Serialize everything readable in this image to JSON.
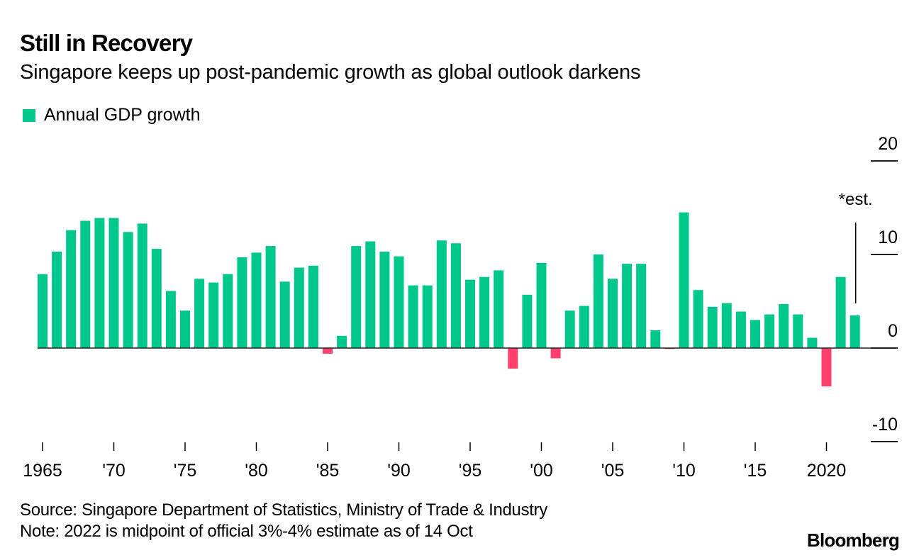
{
  "header": {
    "title": "Still in Recovery",
    "subtitle": "Singapore keeps up post-pandemic growth as global outlook darkens"
  },
  "legend": {
    "label": "Annual GDP growth",
    "color": "#00c88c"
  },
  "footer": {
    "source": "Source: Singapore Department of Statistics, Ministry of Trade & Industry",
    "note": "Note: 2022 is midpoint of official 3%-4% estimate as of 14 Oct",
    "brand": "Bloomberg"
  },
  "chart_data": {
    "type": "bar",
    "title": "Still in Recovery",
    "subtitle": "Singapore keeps up post-pandemic growth as global outlook darkens",
    "xlabel": "",
    "ylabel": "",
    "ylim": [
      -10,
      20
    ],
    "yticks": [
      20,
      10,
      0,
      -10
    ],
    "ytick_labels": [
      "20",
      "10",
      "0",
      "-10"
    ],
    "xtick_years": [
      1965,
      1970,
      1975,
      1980,
      1985,
      1990,
      1995,
      2000,
      2005,
      2010,
      2015,
      2020
    ],
    "xtick_labels": [
      "1965",
      "'70",
      "'75",
      "'80",
      "'85",
      "'90",
      "'95",
      "'00",
      "'05",
      "'10",
      "'15",
      "2020"
    ],
    "legend_position": "top-left",
    "grid": false,
    "positive_color": "#00c88c",
    "negative_color": "#ff3f6c",
    "annotation": {
      "text": "*est.",
      "year": 2022
    },
    "series": [
      {
        "name": "Annual GDP growth",
        "years": [
          1965,
          1966,
          1967,
          1968,
          1969,
          1970,
          1971,
          1972,
          1973,
          1974,
          1975,
          1976,
          1977,
          1978,
          1979,
          1980,
          1981,
          1982,
          1983,
          1984,
          1985,
          1986,
          1987,
          1988,
          1989,
          1990,
          1991,
          1992,
          1993,
          1994,
          1995,
          1996,
          1997,
          1998,
          1999,
          2000,
          2001,
          2002,
          2003,
          2004,
          2005,
          2006,
          2007,
          2008,
          2009,
          2010,
          2011,
          2012,
          2013,
          2014,
          2015,
          2016,
          2017,
          2018,
          2019,
          2020,
          2021,
          2022
        ],
        "values": [
          7.9,
          10.3,
          12.6,
          13.6,
          13.9,
          13.9,
          12.4,
          13.3,
          10.6,
          6.1,
          4.0,
          7.4,
          7.0,
          7.9,
          9.7,
          10.2,
          10.9,
          7.1,
          8.6,
          8.8,
          -0.6,
          1.3,
          10.9,
          11.4,
          10.3,
          9.8,
          6.7,
          6.7,
          11.5,
          11.2,
          7.3,
          7.6,
          8.3,
          -2.2,
          5.7,
          9.1,
          -1.1,
          4.0,
          4.5,
          10.0,
          7.4,
          9.0,
          9.0,
          1.9,
          -0.1,
          14.5,
          6.2,
          4.4,
          4.8,
          3.9,
          3.0,
          3.6,
          4.7,
          3.6,
          1.1,
          -4.1,
          7.6,
          3.5
        ]
      }
    ]
  }
}
